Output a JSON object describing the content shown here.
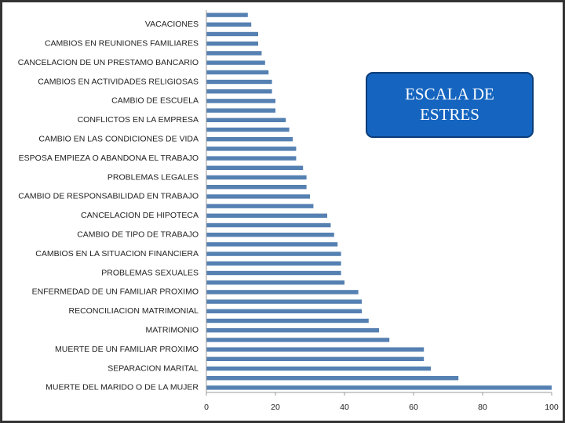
{
  "chart_data": {
    "type": "bar",
    "orientation": "horizontal",
    "categories": [
      null,
      "VACACIONES",
      null,
      "CAMBIOS EN REUNIONES FAMILIARES",
      null,
      "CANCELACION DE UN PRESTAMO BANCARIO",
      null,
      "CAMBIOS EN ACTIVIDADES RELIGIOSAS",
      null,
      "CAMBIO DE ESCUELA",
      null,
      "CONFLICTOS EN LA EMPRESA",
      null,
      "CAMBIO EN LAS CONDICIONES DE VIDA",
      null,
      "ESPOSA EMPIEZA O ABANDONA EL TRABAJO",
      null,
      "PROBLEMAS LEGALES",
      null,
      "CAMBIO DE RESPONSABILIDAD EN TRABAJO",
      null,
      "CANCELACION DE HIPOTECA",
      null,
      "CAMBIO DE TIPO DE TRABAJO",
      null,
      "CAMBIOS EN LA SITUACION FINANCIERA",
      null,
      "PROBLEMAS SEXUALES",
      null,
      "ENFERMEDAD DE UN FAMILIAR PROXIMO",
      null,
      "RECONCILIACION MATRIMONIAL",
      null,
      "MATRIMONIO",
      null,
      "MUERTE DE UN FAMILIAR PROXIMO",
      null,
      "SEPARACION MARITAL",
      null,
      "MUERTE DEL MARIDO O DE LA MUJER"
    ],
    "values": [
      12,
      13,
      15,
      15,
      16,
      17,
      18,
      19,
      19,
      20,
      20,
      23,
      24,
      25,
      26,
      26,
      28,
      29,
      29,
      30,
      31,
      35,
      36,
      37,
      38,
      39,
      39,
      39,
      40,
      44,
      45,
      45,
      47,
      50,
      53,
      63,
      63,
      65,
      73,
      100
    ],
    "color": "#5580b2",
    "xlim": [
      0,
      100
    ],
    "xticks": [
      0,
      20,
      40,
      60,
      80,
      100
    ],
    "annotation": "ESCALA DE ESTRES"
  }
}
